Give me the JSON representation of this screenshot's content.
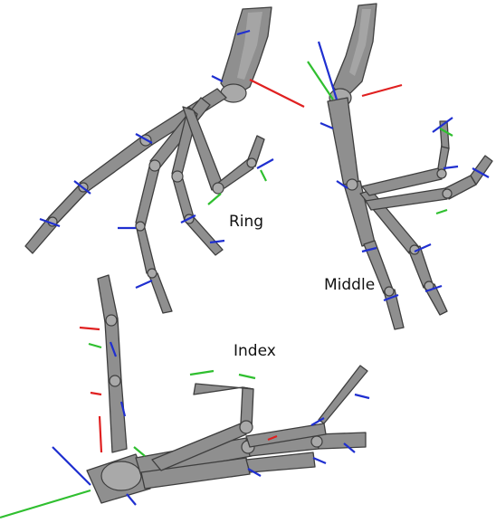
{
  "panels": {
    "ring": {
      "label": "Ring"
    },
    "middle": {
      "label": "Middle"
    },
    "index": {
      "label": "Index"
    }
  },
  "colors": {
    "bone_fill": "#8f8f8f",
    "bone_outline": "#3e3e3e",
    "axis_x": "#e02020",
    "axis_y": "#2fbf2f",
    "axis_z": "#1f2fd0",
    "background": "#ffffff"
  }
}
